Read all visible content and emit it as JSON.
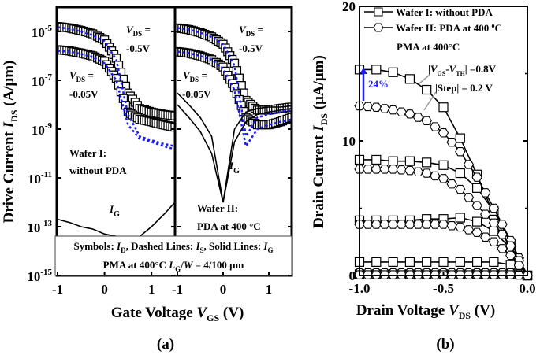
{
  "figure": {
    "label_a": "(a)",
    "label_b": "(b)"
  },
  "chart_data": [
    {
      "type": "line",
      "panel": "a",
      "ylabel": {
        "pre": "Drive Current ",
        "var": "I",
        "sub": "DS",
        "post": " (A/μm)"
      },
      "xlabel": {
        "pre": "Gate Voltage ",
        "var": "V",
        "sub": "GS",
        "post": " (V)"
      },
      "yscale": "log",
      "ylim": [
        1e-15,
        0.0001
      ],
      "yticks": [
        {
          "base": "10",
          "exp": "-5"
        },
        {
          "base": "10",
          "exp": "-7"
        },
        {
          "base": "10",
          "exp": "-9"
        },
        {
          "base": "10",
          "exp": "-11"
        },
        {
          "base": "10",
          "exp": "-13"
        },
        {
          "base": "10",
          "exp": "-15"
        }
      ],
      "ytick_values": [
        1e-05,
        1e-07,
        1e-09,
        1e-11,
        1e-13,
        1e-15
      ],
      "xlim": [
        -1,
        1.5
      ],
      "xticks": [
        "-1",
        "0",
        "1"
      ],
      "xtick_values": [
        -1,
        0,
        1
      ],
      "legend_box": {
        "line1": [
          {
            "t": "Symbols: "
          },
          {
            "t": "I",
            "it": true
          },
          {
            "t": "D",
            "sub": true
          },
          {
            "t": ",  Dashed Lines: "
          },
          {
            "t": "I",
            "it": true
          },
          {
            "t": "S",
            "sub": true
          },
          {
            "t": ",  Solid Lines: "
          },
          {
            "t": "I",
            "it": true
          },
          {
            "t": "G",
            "sub": true
          }
        ],
        "line2": [
          {
            "t": "PMA at 400°C  "
          },
          {
            "t": "L",
            "it": true
          },
          {
            "t": "G",
            "sub": true
          },
          {
            "t": "/"
          },
          {
            "t": "W",
            "it": true
          },
          {
            "t": " = 4/100 μm"
          }
        ]
      },
      "subplots": [
        {
          "name": "Wafer I",
          "annotations": {
            "vds_high": {
              "var": "V",
              "sub": "DS",
              "eq": " =",
              "value": "-0.5V"
            },
            "vds_low": {
              "var": "V",
              "sub": "DS",
              "eq": " =",
              "value": "-0.05V"
            },
            "wafer_line1": "Wafer I:",
            "wafer_line2": "without PDA",
            "ig": {
              "var": "I",
              "sub": "G"
            }
          },
          "x": [
            -1,
            -0.75,
            -0.5,
            -0.25,
            0,
            0.25,
            0.5,
            0.75,
            1,
            1.25,
            1.5
          ],
          "series": [
            {
              "kind": "ID",
              "vds": -0.5,
              "style": "symbols",
              "color": "#000000",
              "values": [
                1.6e-05,
                1.4e-05,
                1.1e-05,
                8e-06,
                4.5e-06,
                8e-07,
                3e-08,
                7e-09,
                5e-09,
                4e-09,
                3.5e-09
              ]
            },
            {
              "kind": "ID",
              "vds": -0.05,
              "style": "symbols",
              "color": "#000000",
              "values": [
                1.8e-06,
                1.6e-06,
                1.3e-06,
                1e-06,
                6e-07,
                1.2e-07,
                5e-09,
                2.5e-09,
                2e-09,
                1.5e-09,
                1.2e-09
              ]
            },
            {
              "kind": "IS",
              "vds": -0.5,
              "style": "dashed",
              "color": "#1a1aff",
              "values": [
                1.5e-05,
                1.3e-05,
                1e-05,
                7e-06,
                4e-06,
                7e-07,
                4e-09,
                5e-10,
                3.5e-10,
                2.5e-10,
                2e-10
              ]
            },
            {
              "kind": "IS",
              "vds": -0.05,
              "style": "dashed",
              "color": "#1a1aff",
              "values": [
                1.6e-06,
                1.5e-06,
                1.2e-06,
                9e-07,
                5e-07,
                1e-07,
                1.5e-09,
                4e-10,
                3e-10,
                2e-10,
                1.5e-10
              ]
            },
            {
              "kind": "IG",
              "style": "solid",
              "color": "#000000",
              "values": [
                2e-13,
                1.5e-13,
                1e-13,
                8e-14,
                5e-14,
                4e-14,
                3e-14,
                4e-14,
                1e-13,
                3e-13,
                1e-12
              ]
            }
          ]
        },
        {
          "name": "Wafer II",
          "annotations": {
            "vds_high": {
              "var": "V",
              "sub": "DS",
              "eq": " =",
              "value": "-0.5V"
            },
            "vds_low": {
              "var": "V",
              "sub": "DS",
              "eq": " =",
              "value": "-0.05V"
            },
            "wafer_line1": "Wafer II:",
            "wafer_line2": "PDA at 400 °C",
            "ig": {
              "var": "I",
              "sub": "G"
            }
          },
          "x": [
            -1,
            -0.75,
            -0.5,
            -0.25,
            0,
            0.25,
            0.5,
            0.75,
            1,
            1.25,
            1.5
          ],
          "series": [
            {
              "kind": "ID",
              "vds": -0.5,
              "style": "symbols",
              "color": "#000000",
              "values": [
                1.4e-05,
                1.2e-05,
                9e-06,
                6e-06,
                3e-06,
                5e-07,
                1.5e-08,
                6e-09,
                6e-09,
                7e-09,
                8e-09
              ]
            },
            {
              "kind": "ID",
              "vds": -0.05,
              "style": "symbols",
              "color": "#000000",
              "values": [
                1.5e-06,
                1.3e-06,
                1e-06,
                7e-07,
                3.5e-07,
                5e-08,
                3e-09,
                1.5e-09,
                1.5e-09,
                2e-09,
                3e-09
              ]
            },
            {
              "kind": "IS",
              "vds": -0.5,
              "style": "dashed",
              "color": "#1a1aff",
              "values": [
                1.4e-05,
                1.2e-05,
                9e-06,
                6e-06,
                3e-06,
                4e-07,
                5e-10,
                3e-09,
                4e-09,
                5e-09,
                6e-09
              ]
            },
            {
              "kind": "IS",
              "vds": -0.05,
              "style": "dashed",
              "color": "#1a1aff",
              "values": [
                1.5e-06,
                1.3e-06,
                1e-06,
                7e-07,
                3e-07,
                4e-08,
                2e-10,
                1e-09,
                1.5e-09,
                2e-09,
                2.5e-09
              ]
            },
            {
              "kind": "IG",
              "vds": -0.5,
              "style": "solid",
              "color": "#000000",
              "values": [
                3e-08,
                1e-08,
                3e-09,
                5e-10,
                1e-12,
                1e-09,
                5e-09,
                7e-09,
                8e-09,
                8e-09,
                9e-09
              ]
            },
            {
              "kind": "IG",
              "vds": -0.05,
              "style": "solid",
              "color": "#000000",
              "values": [
                1e-08,
                3e-09,
                8e-10,
                1e-10,
                1e-12,
                3e-10,
                2e-09,
                4e-09,
                5e-09,
                6e-09,
                7e-09
              ]
            }
          ]
        }
      ]
    },
    {
      "type": "line",
      "panel": "b",
      "ylabel": {
        "pre": "Drain Current ",
        "var": "I",
        "sub": "DS",
        "post": " (μA/μm)"
      },
      "xlabel": {
        "pre": "Drain Voltage ",
        "var": "V",
        "sub": "DS",
        "post": " (V)"
      },
      "ylim": [
        0,
        20
      ],
      "yticks": [
        "20",
        "10",
        "0"
      ],
      "ytick_values": [
        20,
        10,
        0
      ],
      "xlim": [
        -1.0,
        0.0
      ],
      "xticks": [
        "-1.0",
        "-0.5",
        "0.0"
      ],
      "xtick_values": [
        -1.0,
        -0.5,
        0.0
      ],
      "legend": [
        {
          "name": "Wafer I: without PDA",
          "marker": "square"
        },
        {
          "name": "Wafer II: PDA at 400 °C",
          "marker": "hexagon",
          "name_parts": {
            "pre": "Wafer II: PDA at 400 ",
            "sup": "o",
            "post": "C"
          }
        }
      ],
      "annotations": {
        "pma": "PMA at 400°C",
        "vgs_vth": {
          "pre": "|",
          "v1": "V",
          "s1": "GS",
          "mid": "-",
          "v2": "V",
          "s2": "TH",
          "post": "| =0.8V"
        },
        "step": "|Step| = 0.2 V",
        "increase": "24%",
        "increase_color": "#1a1aff",
        "leader_color": "#999999"
      },
      "x": [
        -1.0,
        -0.9,
        -0.8,
        -0.7,
        -0.6,
        -0.5,
        -0.4,
        -0.3,
        -0.2,
        -0.1,
        0.0
      ],
      "series": [
        {
          "wafer": "Wafer I",
          "marker": "square",
          "values": [
            15.3,
            15.3,
            15.1,
            14.6,
            13.8,
            12.5,
            10.2,
            7.5,
            4.5,
            2.0,
            0
          ]
        },
        {
          "wafer": "Wafer I",
          "marker": "square",
          "values": [
            8.6,
            8.6,
            8.5,
            8.5,
            8.4,
            8.2,
            7.6,
            6.5,
            4.8,
            2.4,
            0
          ]
        },
        {
          "wafer": "Wafer I",
          "marker": "square",
          "values": [
            4.1,
            4.1,
            4.1,
            4.1,
            4.2,
            4.2,
            4.3,
            4.0,
            3.3,
            2.0,
            0
          ]
        },
        {
          "wafer": "Wafer I",
          "marker": "square",
          "values": [
            1.0,
            1.0,
            1.0,
            1.0,
            1.0,
            1.0,
            1.0,
            1.0,
            1.0,
            0.8,
            0
          ]
        },
        {
          "wafer": "Wafer I",
          "marker": "square",
          "values": [
            0.1,
            0.1,
            0.1,
            0.1,
            0.1,
            0.1,
            0.1,
            0.1,
            0.1,
            0.1,
            0
          ]
        },
        {
          "wafer": "Wafer II",
          "marker": "hexagon",
          "values": [
            12.6,
            12.5,
            12.3,
            12.0,
            11.5,
            10.6,
            9.2,
            7.3,
            5.0,
            2.6,
            0
          ]
        },
        {
          "wafer": "Wafer II",
          "marker": "hexagon",
          "values": [
            7.9,
            7.9,
            7.9,
            7.8,
            7.6,
            7.2,
            6.4,
            5.2,
            3.9,
            2.2,
            0
          ]
        },
        {
          "wafer": "Wafer II",
          "marker": "hexagon",
          "values": [
            3.8,
            3.8,
            3.8,
            3.8,
            3.8,
            3.8,
            3.6,
            3.2,
            2.5,
            1.5,
            0
          ]
        },
        {
          "wafer": "Wafer II",
          "marker": "hexagon",
          "values": [
            0.2,
            0.2,
            0.2,
            0.2,
            0.2,
            0.2,
            0.2,
            0.2,
            0.2,
            0.2,
            0
          ]
        },
        {
          "wafer": "Wafer II",
          "marker": "hexagon",
          "values": [
            0.05,
            0.05,
            0.05,
            0.05,
            0.05,
            0.05,
            0.05,
            0.05,
            0.05,
            0.05,
            0
          ]
        }
      ]
    }
  ]
}
